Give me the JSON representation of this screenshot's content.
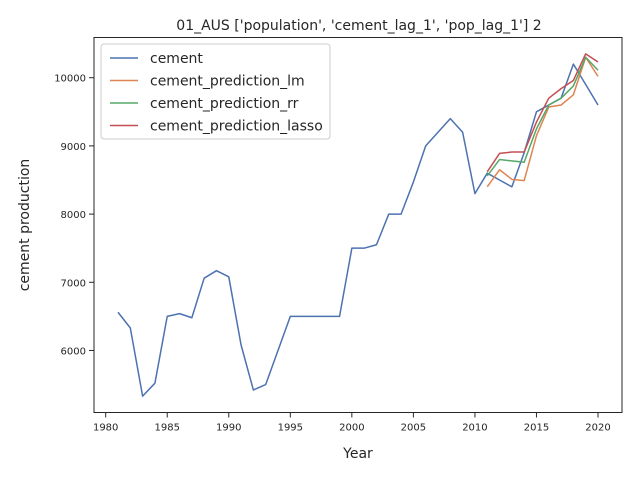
{
  "chart_data": {
    "type": "line",
    "title": "01_AUS ['population', 'cement_lag_1', 'pop_lag_1'] 2",
    "xlabel": "Year",
    "ylabel": "cement production",
    "xlim": [
      1979.05,
      2021.95
    ],
    "ylim": [
      5090,
      10590
    ],
    "xticks": [
      1980,
      1985,
      1990,
      1995,
      2000,
      2005,
      2010,
      2015,
      2020
    ],
    "yticks": [
      6000,
      7000,
      8000,
      9000,
      10000
    ],
    "grid": false,
    "legend": {
      "position": "top-left"
    },
    "series": [
      {
        "name": "cement",
        "color": "#4c72b0",
        "x": [
          1981,
          1982,
          1983,
          1984,
          1985,
          1986,
          1987,
          1988,
          1989,
          1990,
          1991,
          1992,
          1993,
          1994,
          1995,
          1996,
          1997,
          1998,
          1999,
          2000,
          2001,
          2002,
          2003,
          2004,
          2005,
          2006,
          2007,
          2008,
          2009,
          2010,
          2011,
          2012,
          2013,
          2014,
          2015,
          2016,
          2017,
          2018,
          2019,
          2020
        ],
        "y": [
          6560,
          6330,
          5330,
          5520,
          6500,
          6540,
          6480,
          7060,
          7170,
          7080,
          6080,
          5420,
          5500,
          6000,
          6500,
          6500,
          6500,
          6500,
          6500,
          7500,
          7500,
          7550,
          8000,
          8000,
          8470,
          9000,
          9200,
          9400,
          9200,
          8300,
          8600,
          8500,
          8400,
          8900,
          9500,
          9600,
          9700,
          10200,
          9900,
          9600
        ]
      },
      {
        "name": "cement_prediction_lm",
        "color": "#dd8452",
        "x": [
          2011,
          2012,
          2013,
          2014,
          2015,
          2016,
          2017,
          2018,
          2019,
          2020
        ],
        "y": [
          8400,
          8650,
          8510,
          8490,
          9150,
          9570,
          9600,
          9750,
          10300,
          10020
        ]
      },
      {
        "name": "cement_prediction_rr",
        "color": "#55a868",
        "x": [
          2011,
          2012,
          2013,
          2014,
          2015,
          2016,
          2017,
          2018,
          2019,
          2020
        ],
        "y": [
          8560,
          8800,
          8780,
          8760,
          9250,
          9600,
          9700,
          9880,
          10300,
          10110
        ]
      },
      {
        "name": "cement_prediction_lasso",
        "color": "#c44e52",
        "x": [
          2011,
          2012,
          2013,
          2014,
          2015,
          2016,
          2017,
          2018,
          2019,
          2020
        ],
        "y": [
          8620,
          8890,
          8910,
          8910,
          9350,
          9700,
          9840,
          9960,
          10350,
          10230
        ]
      }
    ]
  }
}
